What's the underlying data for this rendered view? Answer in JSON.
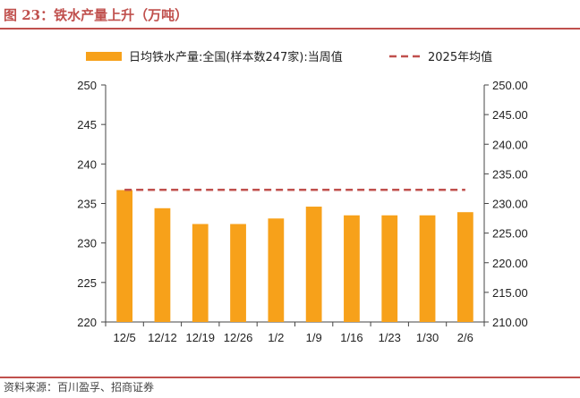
{
  "figure": {
    "title": "图 23：铁水产量上升（万吨）",
    "source": "资料来源：百川盈孚、招商证券"
  },
  "colors": {
    "accent": "#c0504d",
    "bar": "#f7a11a",
    "avg_line": "#c0504d",
    "axis": "#444444"
  },
  "chart_data": {
    "type": "bar",
    "categories": [
      "12/5",
      "12/12",
      "12/19",
      "12/26",
      "1/2",
      "1/9",
      "1/16",
      "1/23",
      "1/30",
      "2/6"
    ],
    "series": [
      {
        "name": "日均铁水产量:全国(样本数247家):当周值",
        "type": "bar",
        "axis": "left",
        "values": [
          236.7,
          234.4,
          232.4,
          232.4,
          233.1,
          234.6,
          233.5,
          233.5,
          233.5,
          233.9
        ]
      },
      {
        "name": "2025年均值",
        "type": "line",
        "style": "dashed",
        "axis": "right",
        "values": [
          232.3,
          232.3,
          232.3,
          232.3,
          232.3,
          232.3,
          232.3,
          232.3,
          232.3,
          232.3
        ]
      }
    ],
    "y_left": {
      "min": 220,
      "max": 250,
      "step": 5,
      "ticks": [
        "220",
        "225",
        "230",
        "235",
        "240",
        "245",
        "250"
      ]
    },
    "y_right": {
      "min": 210,
      "max": 250,
      "step": 5,
      "ticks": [
        "210.00",
        "215.00",
        "220.00",
        "225.00",
        "230.00",
        "235.00",
        "240.00",
        "245.00",
        "250.00"
      ]
    },
    "legend_position": "top",
    "grid": false
  }
}
